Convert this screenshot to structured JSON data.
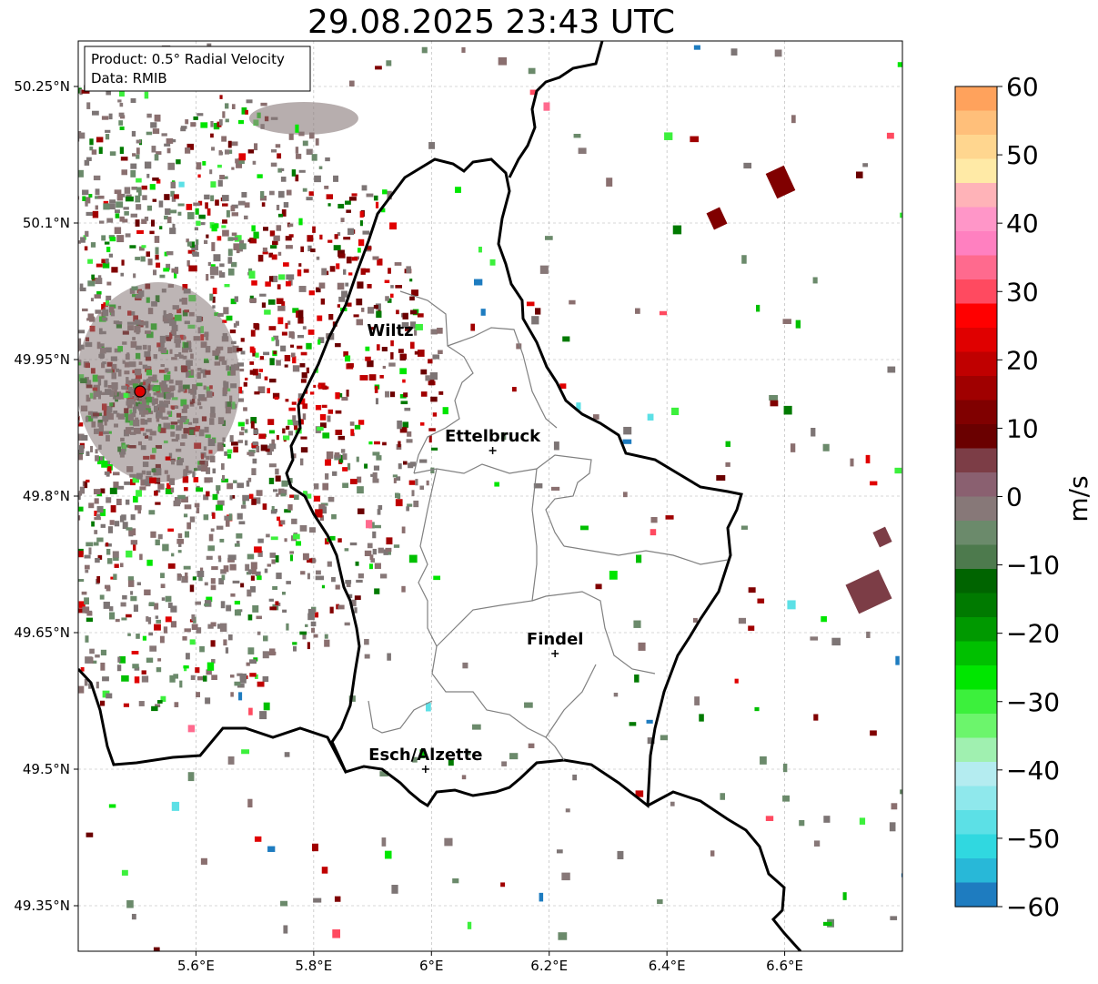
{
  "title": "29.08.2025 23:43 UTC",
  "info_box": {
    "line1": "Product: 0.5° Radial Velocity",
    "line2": "Data: RMIB"
  },
  "map": {
    "lon_range": [
      5.4,
      6.8
    ],
    "lat_range": [
      49.3,
      50.3
    ],
    "gridlines": true,
    "x_ticks": [
      "5.6°E",
      "5.8°E",
      "6°E",
      "6.2°E",
      "6.4°E",
      "6.6°E"
    ],
    "x_tick_values": [
      5.6,
      5.8,
      6.0,
      6.2,
      6.4,
      6.6
    ],
    "y_ticks": [
      "49.35°N",
      "49.5°N",
      "49.65°N",
      "49.8°N",
      "49.95°N",
      "50.1°N",
      "50.25°N"
    ],
    "y_tick_values": [
      49.35,
      49.5,
      49.65,
      49.8,
      49.95,
      50.1,
      50.25
    ],
    "radar_site": {
      "lon": 5.505,
      "lat": 49.915,
      "color": "#e00000"
    },
    "cities": [
      {
        "name": "Wiltz",
        "lon": 5.93,
        "lat": 49.966,
        "marker": false
      },
      {
        "name": "Ettelbruck",
        "lon": 6.104,
        "lat": 49.85,
        "marker": true
      },
      {
        "name": "Findel",
        "lon": 6.21,
        "lat": 49.627,
        "marker": true
      },
      {
        "name": "Esch/Alzette",
        "lon": 5.99,
        "lat": 49.5,
        "marker": true
      }
    ]
  },
  "colorbar": {
    "label": "m/s",
    "min": -60,
    "max": 60,
    "ticks": [
      "60",
      "50",
      "40",
      "30",
      "20",
      "10",
      "0",
      "−10",
      "−20",
      "−30",
      "−40",
      "−50",
      "−60"
    ],
    "tick_values": [
      60,
      50,
      40,
      30,
      20,
      10,
      0,
      -10,
      -20,
      -30,
      -40,
      -50,
      -60
    ],
    "colors_top_to_bottom": [
      "#ffa25c",
      "#ffbf7a",
      "#ffd68f",
      "#ffeaa6",
      "#ffb3b8",
      "#ff96c8",
      "#ff80c0",
      "#ff6a8e",
      "#ff4a60",
      "#ff0000",
      "#e00000",
      "#c00000",
      "#a00000",
      "#800000",
      "#6a0000",
      "#7c3d46",
      "#8a6070",
      "#877878",
      "#6b8a6b",
      "#4d7a4d",
      "#006400",
      "#007a00",
      "#009900",
      "#00c000",
      "#00e600",
      "#3cf03c",
      "#6cf56c",
      "#a0f0b0",
      "#b4ecf0",
      "#8fe8ec",
      "#5ce0e6",
      "#30d8e0",
      "#28b8d8",
      "#1e7cc0"
    ]
  }
}
